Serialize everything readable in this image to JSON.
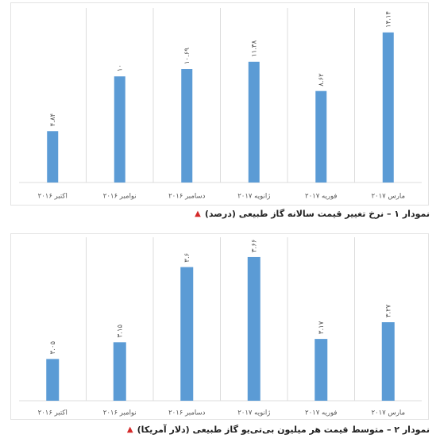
{
  "colors": {
    "bar": "#5b9bd5",
    "grid": "#dcdcdc",
    "label": "#555555",
    "marker": "#d42a2a"
  },
  "charts": [
    {
      "caption_marker": "▲",
      "caption": "نمودار ۱ – نرخ تغییر قیمت سالانه گاز طبیعی (درصد)"
    },
    {
      "caption_marker": "▲",
      "caption": "نمودار ۲ – متوسط قیمت هر میلیون بی‌تی‌یو گاز طبیعی (دلار آمریکا)"
    }
  ],
  "chart_data": [
    {
      "type": "bar",
      "categories": [
        "اکتبر ۲۰۱۶",
        "نوامبر ۲۰۱۶",
        "دسامبر ۲۰۱۶",
        "ژانویه ۲۰۱۷",
        "فوریه ۲۰۱۷",
        "مارس ۲۰۱۷"
      ],
      "values": [
        4.84,
        10,
        10.69,
        11.38,
        8.62,
        14.14
      ],
      "data_labels": [
        "۴.۸۴",
        "۱۰",
        "۱۰.۶۹",
        "۱۱.۳۸",
        "۸.۶۲",
        "۱۴.۱۴"
      ],
      "ylim": [
        0,
        16
      ],
      "grid": "vertical"
    },
    {
      "type": "bar",
      "categories": [
        "اکتبر ۲۰۱۶",
        "نوامبر ۲۰۱۶",
        "دسامبر ۲۰۱۶",
        "ژانویه ۲۰۱۷",
        "فوریه ۲۰۱۷",
        "مارس ۲۰۱۷"
      ],
      "values": [
        3.05,
        3.15,
        3.6,
        3.66,
        3.17,
        3.27
      ],
      "data_labels": [
        "۳.۰۵",
        "۳.۱۵",
        "۳.۶",
        "۳.۶۶",
        "۳.۱۷",
        "۳.۲۷"
      ],
      "ylim": [
        2.8,
        3.75
      ],
      "grid": "vertical"
    }
  ]
}
